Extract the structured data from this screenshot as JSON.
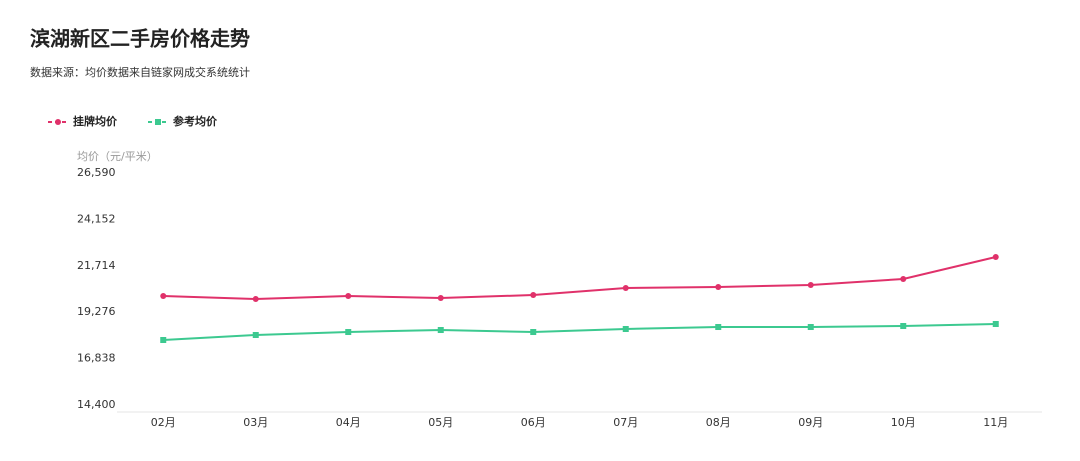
{
  "chart_data": {
    "type": "line",
    "title": "滨湖新区二手房价格走势",
    "subtitle": "数据来源：均价数据来自链家网成交系统统计",
    "y_label": "均价（元/平米）",
    "categories": [
      "02月",
      "03月",
      "04月",
      "05月",
      "06月",
      "07月",
      "08月",
      "09月",
      "10月",
      "11月"
    ],
    "series": [
      {
        "name": "挂牌均价",
        "color": "#e0316a",
        "marker": "circle",
        "values": [
          20127,
          19970,
          20127,
          20022,
          20180,
          20547,
          20600,
          20705,
          21020,
          22176
        ]
      },
      {
        "name": "参考均价",
        "color": "#3cc990",
        "marker": "square",
        "values": [
          17815,
          18078,
          18235,
          18340,
          18235,
          18393,
          18498,
          18498,
          18551,
          18656
        ]
      }
    ],
    "ylim": [
      14400,
      26590
    ],
    "yticks": [
      {
        "value": 14400,
        "label": "14,400"
      },
      {
        "value": 16838,
        "label": "16,838"
      },
      {
        "value": 19276,
        "label": "19,276"
      },
      {
        "value": 21714,
        "label": "21,714"
      },
      {
        "value": 24152,
        "label": "24,152"
      },
      {
        "value": 26590,
        "label": "26,590"
      }
    ],
    "grid": false
  }
}
